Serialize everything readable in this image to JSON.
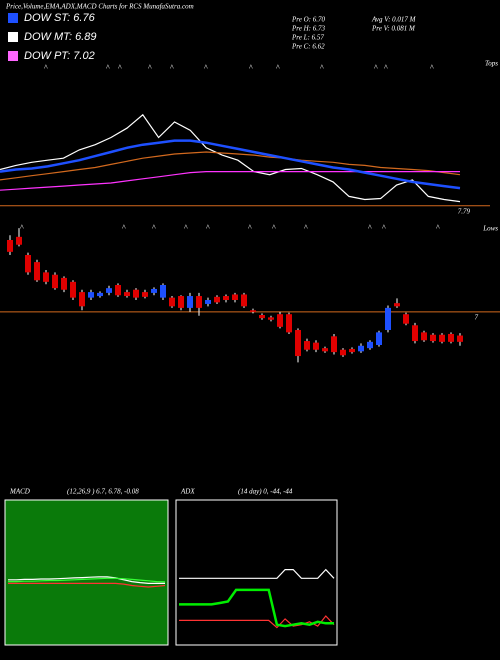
{
  "header": {
    "title": "Price,Volume,EMA,ADX,MACD Charts for RCS MunafaSutra.com",
    "legend": [
      {
        "label": "DOW ST: 6.76",
        "color": "#1e50ff"
      },
      {
        "label": "DOW MT: 6.89",
        "color": "#ffffff"
      },
      {
        "label": "DOW PT: 7.02",
        "color": "#ff66ff"
      }
    ],
    "info": [
      "Pre O: 6.70",
      "Pre H: 6.73",
      "Pre L: 6.57",
      "Pre C: 6.62",
      "Avg V: 0.017 M",
      "Pre V: 0.081 M"
    ]
  },
  "chart_data": [
    {
      "type": "line",
      "annotation": "Tops",
      "ylim": [
        7.7,
        9.2
      ],
      "yticks": [
        7.79
      ],
      "tick_color": "#d2691e",
      "series": [
        {
          "color": "#ffffff",
          "values": [
            8.14,
            8.18,
            8.21,
            8.23,
            8.25,
            8.33,
            8.38,
            8.45,
            8.54,
            8.67,
            8.45,
            8.6,
            8.52,
            8.35,
            8.28,
            8.23,
            8.12,
            8.09,
            8.14,
            8.15,
            8.09,
            8.02,
            7.88,
            7.85,
            7.86,
            7.99,
            8.04,
            7.88,
            7.85,
            7.83
          ]
        },
        {
          "color": "#d2691e",
          "values": [
            8.04,
            8.06,
            8.08,
            8.1,
            8.12,
            8.14,
            8.16,
            8.19,
            8.22,
            8.25,
            8.27,
            8.29,
            8.3,
            8.31,
            8.3,
            8.29,
            8.28,
            8.26,
            8.25,
            8.23,
            8.22,
            8.21,
            8.19,
            8.18,
            8.16,
            8.15,
            8.14,
            8.13,
            8.11,
            8.09
          ]
        },
        {
          "color": "#ff33ff",
          "values": [
            7.94,
            7.95,
            7.96,
            7.97,
            7.98,
            7.99,
            8.0,
            8.01,
            8.03,
            8.05,
            8.07,
            8.09,
            8.11,
            8.12,
            8.12,
            8.12,
            8.12,
            8.12,
            8.12,
            8.12,
            8.12,
            8.12,
            8.12,
            8.12,
            8.12,
            8.12,
            8.12,
            8.12,
            8.12,
            8.12
          ]
        },
        {
          "color": "#1e50ff",
          "values": [
            8.12,
            8.14,
            8.15,
            8.17,
            8.2,
            8.23,
            8.27,
            8.31,
            8.35,
            8.38,
            8.4,
            8.42,
            8.42,
            8.4,
            8.37,
            8.34,
            8.31,
            8.28,
            8.25,
            8.22,
            8.19,
            8.16,
            8.14,
            8.11,
            8.08,
            8.05,
            8.02,
            8.0,
            7.98,
            7.96
          ]
        }
      ]
    },
    {
      "type": "candlestick",
      "annotation": "Lows",
      "ylim": [
        6.2,
        8.1
      ],
      "yticks": [
        7
      ],
      "tick_color": "#d2691e",
      "up_color": "#1e50ff",
      "down_color": "#e00000",
      "open": [
        7.91,
        7.95,
        7.72,
        7.63,
        7.5,
        7.47,
        7.43,
        7.38,
        7.25,
        7.18,
        7.2,
        7.24,
        7.34,
        7.25,
        7.28,
        7.25,
        7.24,
        7.18,
        7.18,
        7.2,
        7.05,
        7.2,
        7.1,
        7.19,
        7.2,
        7.22,
        7.22,
        7.02,
        6.96,
        6.93,
        6.97,
        6.97,
        6.77,
        6.63,
        6.61,
        6.54,
        6.69,
        6.52,
        6.53,
        6.5,
        6.54,
        6.58,
        6.77,
        7.11,
        6.97,
        6.83,
        6.74,
        6.71,
        6.71,
        6.72,
        6.7
      ],
      "high": [
        7.97,
        8.06,
        7.75,
        7.66,
        7.53,
        7.5,
        7.45,
        7.4,
        7.28,
        7.28,
        7.26,
        7.33,
        7.36,
        7.28,
        7.3,
        7.28,
        7.31,
        7.36,
        7.2,
        7.21,
        7.24,
        7.24,
        7.18,
        7.21,
        7.22,
        7.24,
        7.24,
        7.04,
        6.98,
        6.95,
        7.0,
        6.99,
        6.79,
        6.66,
        6.64,
        6.56,
        6.72,
        6.54,
        6.55,
        6.6,
        6.64,
        6.76,
        7.08,
        7.17,
        6.99,
        6.86,
        6.76,
        6.73,
        6.73,
        6.74,
        6.73
      ],
      "low": [
        7.72,
        7.83,
        7.47,
        7.38,
        7.35,
        7.28,
        7.25,
        7.15,
        7.02,
        7.15,
        7.18,
        7.21,
        7.19,
        7.18,
        7.15,
        7.17,
        7.21,
        7.15,
        7.05,
        7.02,
        7.0,
        6.95,
        7.07,
        7.1,
        7.12,
        7.12,
        7.05,
        6.98,
        6.9,
        6.88,
        6.79,
        6.72,
        6.36,
        6.5,
        6.49,
        6.48,
        6.46,
        6.43,
        6.47,
        6.48,
        6.52,
        6.56,
        6.74,
        7.05,
        6.83,
        6.6,
        6.62,
        6.61,
        6.6,
        6.6,
        6.57
      ],
      "close": [
        7.76,
        7.85,
        7.5,
        7.4,
        7.38,
        7.3,
        7.28,
        7.18,
        7.07,
        7.25,
        7.24,
        7.3,
        7.21,
        7.2,
        7.18,
        7.19,
        7.29,
        7.34,
        7.07,
        7.05,
        7.2,
        7.05,
        7.15,
        7.12,
        7.15,
        7.15,
        7.07,
        7.0,
        6.92,
        6.9,
        6.81,
        6.74,
        6.44,
        6.52,
        6.52,
        6.5,
        6.49,
        6.45,
        6.49,
        6.57,
        6.62,
        6.74,
        7.05,
        7.07,
        6.85,
        6.63,
        6.64,
        6.63,
        6.62,
        6.62,
        6.62
      ]
    },
    {
      "type": "line",
      "title": "MACD",
      "subtitle": "(12,26,9 ) 6.7, 6.78, -0.08",
      "ylim": [
        -2,
        2
      ],
      "background": "#0a7a0a",
      "series": [
        {
          "color": "#ffffff",
          "values": [
            -0.2,
            -0.2,
            -0.19,
            -0.19,
            -0.18,
            -0.18,
            -0.17,
            -0.16,
            -0.15,
            -0.14,
            -0.13,
            -0.12,
            -0.12,
            -0.15,
            -0.2,
            -0.25,
            -0.28,
            -0.3,
            -0.3,
            -0.3
          ]
        },
        {
          "color": "#33ff33",
          "values": [
            -0.25,
            -0.25,
            -0.24,
            -0.24,
            -0.23,
            -0.22,
            -0.22,
            -0.21,
            -0.2,
            -0.19,
            -0.18,
            -0.17,
            -0.16,
            -0.16,
            -0.17,
            -0.19,
            -0.21,
            -0.23,
            -0.25,
            -0.26
          ]
        },
        {
          "color": "#ff3333",
          "values": [
            -0.3,
            -0.3,
            -0.3,
            -0.3,
            -0.3,
            -0.3,
            -0.3,
            -0.3,
            -0.3,
            -0.3,
            -0.3,
            -0.3,
            -0.3,
            -0.3,
            -0.32,
            -0.36,
            -0.38,
            -0.4,
            -0.38,
            -0.36
          ]
        }
      ]
    },
    {
      "type": "line",
      "title": "ADX",
      "subtitle": "(14 day) 0, -44, -44",
      "ylim": [
        0,
        100
      ],
      "background": "#000000",
      "series": [
        {
          "color": "#ffffff",
          "values": [
            46,
            46,
            46,
            46,
            46,
            46,
            46,
            46,
            46,
            46,
            46,
            46,
            46,
            52,
            52,
            46,
            46,
            46,
            52,
            46
          ]
        },
        {
          "color": "#ff3333",
          "values": [
            17,
            17,
            17,
            17,
            17,
            17,
            17,
            17,
            17,
            17,
            17,
            17,
            12,
            18,
            13,
            14,
            16,
            13,
            20,
            14
          ]
        },
        {
          "color": "#00ee00",
          "values": [
            28,
            28,
            28,
            28,
            28,
            29,
            30,
            38,
            38,
            38,
            38,
            38,
            14,
            13,
            14,
            15,
            14,
            16,
            15,
            15
          ]
        }
      ]
    }
  ]
}
